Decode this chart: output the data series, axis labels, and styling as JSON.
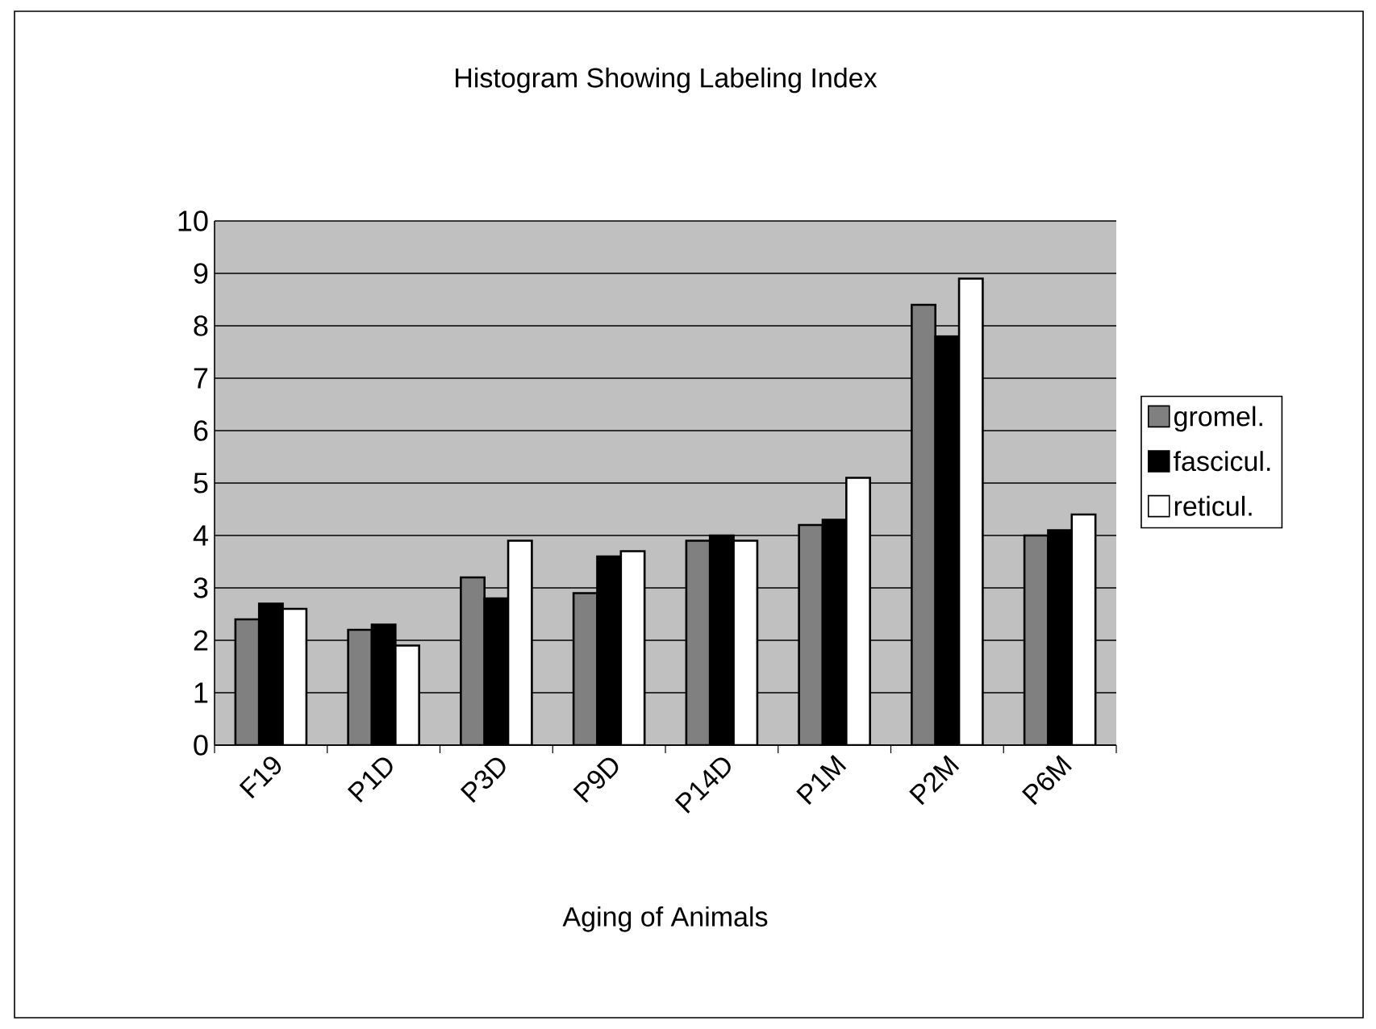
{
  "chart_data": {
    "type": "bar",
    "title": "Histogram Showing Labeling Index",
    "xlabel": "Aging of Animals",
    "categories": [
      "F19",
      "P1D",
      "P3D",
      "P9D",
      "P14D",
      "P1M",
      "P2M",
      "P6M"
    ],
    "series": [
      {
        "name": "gromel.",
        "color": "#808080",
        "values": [
          2.4,
          2.2,
          3.2,
          2.9,
          3.9,
          4.2,
          8.4,
          4.0
        ]
      },
      {
        "name": "fascicul.",
        "color": "#000000",
        "values": [
          2.7,
          2.3,
          2.8,
          3.6,
          4.0,
          4.3,
          7.8,
          4.1
        ]
      },
      {
        "name": "reticul.",
        "color": "#ffffff",
        "values": [
          2.6,
          1.9,
          3.9,
          3.7,
          3.9,
          5.1,
          8.9,
          4.4
        ]
      }
    ],
    "ylim": [
      0,
      10
    ],
    "yticks": [
      0,
      1,
      2,
      3,
      4,
      5,
      6,
      7,
      8,
      9,
      10
    ],
    "grid": "y",
    "legend": "right"
  }
}
